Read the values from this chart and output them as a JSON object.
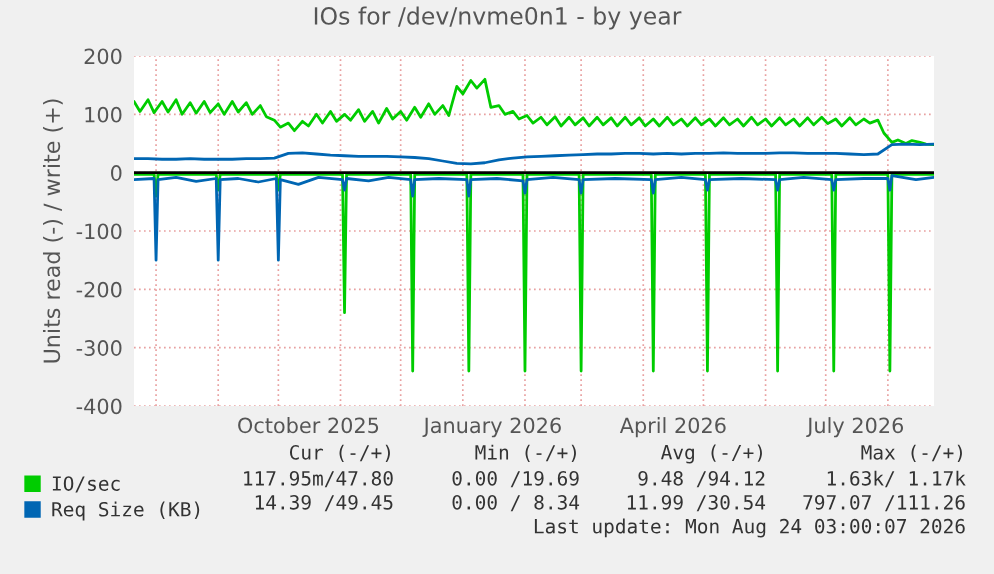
{
  "chart_data": {
    "type": "line",
    "title": "IOs for /dev/nvme0n1 - by year",
    "ylabel": "Units read (-) / write (+)",
    "xlim": [
      "2025-07-21",
      "2026-08-24"
    ],
    "xticks": [
      {
        "value": "2025-08-01",
        "label": null
      },
      {
        "value": "2025-09-01",
        "label": null
      },
      {
        "value": "2025-10-01",
        "label": null
      },
      {
        "value": "2025-10-16",
        "label": "October 2025"
      },
      {
        "value": "2025-11-01",
        "label": null
      },
      {
        "value": "2025-12-01",
        "label": null
      },
      {
        "value": "2026-01-01",
        "label": null
      },
      {
        "value": "2026-01-16",
        "label": "January 2026"
      },
      {
        "value": "2026-02-01",
        "label": null
      },
      {
        "value": "2026-03-01",
        "label": null
      },
      {
        "value": "2026-04-01",
        "label": null
      },
      {
        "value": "2026-04-16",
        "label": "April 2026"
      },
      {
        "value": "2026-05-01",
        "label": null
      },
      {
        "value": "2026-06-01",
        "label": null
      },
      {
        "value": "2026-07-01",
        "label": null
      },
      {
        "value": "2026-07-16",
        "label": "July 2026"
      },
      {
        "value": "2026-08-01",
        "label": null
      }
    ],
    "ylim": [
      -400,
      200
    ],
    "yticks": [
      200,
      100,
      0,
      -100,
      -200,
      -300,
      -400
    ],
    "grid": true,
    "legend": "bottom left",
    "ref_lines": [
      {
        "axis": "y",
        "value": 0,
        "color": "#000000"
      }
    ],
    "series": [
      {
        "name": "IO/sec",
        "color": "#00cc00",
        "x": [
          "2025-07-21",
          "2025-07-24",
          "2025-07-28",
          "2025-07-31",
          "2025-08-04",
          "2025-08-07",
          "2025-08-11",
          "2025-08-14",
          "2025-08-18",
          "2025-08-21",
          "2025-08-25",
          "2025-08-28",
          "2025-09-01",
          "2025-09-04",
          "2025-09-08",
          "2025-09-11",
          "2025-09-15",
          "2025-09-18",
          "2025-09-22",
          "2025-09-25",
          "2025-09-29",
          "2025-10-02",
          "2025-10-06",
          "2025-10-09",
          "2025-10-13",
          "2025-10-16",
          "2025-10-20",
          "2025-10-23",
          "2025-10-27",
          "2025-10-30",
          "2025-11-03",
          "2025-11-06",
          "2025-11-10",
          "2025-11-13",
          "2025-11-17",
          "2025-11-20",
          "2025-11-24",
          "2025-11-27",
          "2025-12-01",
          "2025-12-04",
          "2025-12-08",
          "2025-12-11",
          "2025-12-15",
          "2025-12-18",
          "2025-12-22",
          "2025-12-25",
          "2025-12-29",
          "2026-01-01",
          "2026-01-05",
          "2026-01-08",
          "2026-01-12",
          "2026-01-15",
          "2026-01-19",
          "2026-01-22",
          "2026-01-26",
          "2026-01-29",
          "2026-02-02",
          "2026-02-05",
          "2026-02-09",
          "2026-02-12",
          "2026-02-16",
          "2026-02-19",
          "2026-02-23",
          "2026-02-26",
          "2026-03-02",
          "2026-03-05",
          "2026-03-09",
          "2026-03-12",
          "2026-03-16",
          "2026-03-19",
          "2026-03-23",
          "2026-03-26",
          "2026-03-30",
          "2026-04-02",
          "2026-04-06",
          "2026-04-09",
          "2026-04-13",
          "2026-04-16",
          "2026-04-20",
          "2026-04-23",
          "2026-04-27",
          "2026-04-30",
          "2026-05-04",
          "2026-05-07",
          "2026-05-11",
          "2026-05-14",
          "2026-05-18",
          "2026-05-21",
          "2026-05-25",
          "2026-05-28",
          "2026-06-01",
          "2026-06-04",
          "2026-06-08",
          "2026-06-11",
          "2026-06-15",
          "2026-06-18",
          "2026-06-22",
          "2026-06-25",
          "2026-06-29",
          "2026-07-02",
          "2026-07-06",
          "2026-07-09",
          "2026-07-13",
          "2026-07-16",
          "2026-07-20",
          "2026-07-23",
          "2026-07-27",
          "2026-07-30",
          "2026-08-03",
          "2026-08-06",
          "2026-08-10",
          "2026-08-13",
          "2026-08-17",
          "2026-08-20",
          "2026-08-24"
        ],
        "values": [
          122,
          105,
          125,
          103,
          122,
          104,
          125,
          100,
          120,
          102,
          122,
          103,
          118,
          100,
          122,
          104,
          120,
          100,
          115,
          96,
          90,
          78,
          85,
          72,
          88,
          80,
          100,
          85,
          105,
          88,
          100,
          90,
          108,
          88,
          105,
          85,
          110,
          92,
          105,
          90,
          112,
          95,
          118,
          100,
          115,
          98,
          148,
          135,
          158,
          145,
          160,
          112,
          115,
          100,
          105,
          92,
          98,
          85,
          95,
          82,
          96,
          80,
          95,
          82,
          94,
          80,
          95,
          82,
          94,
          80,
          95,
          82,
          94,
          80,
          92,
          80,
          95,
          82,
          92,
          80,
          94,
          82,
          92,
          80,
          94,
          82,
          92,
          80,
          95,
          82,
          92,
          80,
          94,
          82,
          92,
          80,
          94,
          82,
          95,
          84,
          92,
          80,
          94,
          82,
          92,
          85,
          90,
          68,
          52,
          56,
          50,
          55,
          52,
          49,
          48
        ]
      },
      {
        "color": "#00cc00",
        "x": [
          "2025-07-21",
          "2025-07-31",
          "2025-08-01",
          "2025-08-02",
          "2025-08-31",
          "2025-09-01",
          "2025-09-02",
          "2025-09-30",
          "2025-10-01",
          "2025-10-02",
          "2025-11-02",
          "2025-11-03",
          "2025-11-04",
          "2025-12-06",
          "2025-12-07",
          "2025-12-08",
          "2026-01-03",
          "2026-01-04",
          "2026-01-05",
          "2026-01-31",
          "2026-02-01",
          "2026-02-02",
          "2026-02-28",
          "2026-03-01",
          "2026-03-02",
          "2026-04-05",
          "2026-04-06",
          "2026-04-07",
          "2026-05-02",
          "2026-05-03",
          "2026-05-04",
          "2026-06-06",
          "2026-06-07",
          "2026-06-08",
          "2026-07-04",
          "2026-07-05",
          "2026-07-06",
          "2026-08-01",
          "2026-08-02",
          "2026-08-03",
          "2026-08-24"
        ],
        "values": [
          -3,
          -3,
          -40,
          -3,
          -3,
          -30,
          -3,
          -3,
          -30,
          -3,
          -3,
          -240,
          -3,
          -3,
          -340,
          -3,
          -3,
          -340,
          -3,
          -3,
          -340,
          -3,
          -3,
          -340,
          -3,
          -3,
          -340,
          -3,
          -3,
          -340,
          -3,
          -3,
          -340,
          -3,
          -3,
          -340,
          -3,
          -3,
          -340,
          -3,
          -3
        ]
      },
      {
        "name": "Req Size (KB)",
        "color": "#0066b3",
        "x": [
          "2025-07-21",
          "2025-07-28",
          "2025-08-04",
          "2025-08-11",
          "2025-08-18",
          "2025-08-25",
          "2025-09-01",
          "2025-09-08",
          "2025-09-15",
          "2025-09-22",
          "2025-09-29",
          "2025-10-06",
          "2025-10-13",
          "2025-10-20",
          "2025-10-27",
          "2025-11-03",
          "2025-11-10",
          "2025-11-17",
          "2025-11-24",
          "2025-12-01",
          "2025-12-08",
          "2025-12-15",
          "2025-12-22",
          "2025-12-29",
          "2026-01-05",
          "2026-01-12",
          "2026-01-19",
          "2026-01-26",
          "2026-02-02",
          "2026-02-09",
          "2026-02-16",
          "2026-02-23",
          "2026-03-02",
          "2026-03-09",
          "2026-03-16",
          "2026-03-23",
          "2026-03-30",
          "2026-04-06",
          "2026-04-13",
          "2026-04-20",
          "2026-04-27",
          "2026-05-04",
          "2026-05-11",
          "2026-05-18",
          "2026-05-25",
          "2026-06-01",
          "2026-06-08",
          "2026-06-15",
          "2026-06-22",
          "2026-06-29",
          "2026-07-06",
          "2026-07-13",
          "2026-07-20",
          "2026-07-27",
          "2026-08-03",
          "2026-08-10",
          "2026-08-17",
          "2026-08-24"
        ],
        "values": [
          24,
          24,
          23,
          23,
          24,
          23,
          23,
          23,
          24,
          24,
          25,
          33,
          34,
          32,
          30,
          29,
          28,
          28,
          28,
          27,
          26,
          24,
          20,
          16,
          15,
          17,
          22,
          25,
          27,
          28,
          29,
          30,
          31,
          32,
          32,
          33,
          33,
          32,
          33,
          32,
          33,
          33,
          34,
          33,
          33,
          33,
          34,
          34,
          33,
          33,
          33,
          32,
          31,
          32,
          48,
          49,
          48,
          49
        ]
      },
      {
        "color": "#0066b3",
        "x": [
          "2025-07-21",
          "2025-07-31",
          "2025-08-01",
          "2025-08-02",
          "2025-08-11",
          "2025-08-21",
          "2025-08-31",
          "2025-09-01",
          "2025-09-02",
          "2025-09-11",
          "2025-09-21",
          "2025-09-30",
          "2025-10-01",
          "2025-10-02",
          "2025-10-11",
          "2025-10-21",
          "2025-11-02",
          "2025-11-03",
          "2025-11-04",
          "2025-11-15",
          "2025-11-25",
          "2025-12-06",
          "2025-12-07",
          "2025-12-08",
          "2025-12-20",
          "2026-01-03",
          "2026-01-04",
          "2026-01-05",
          "2026-01-18",
          "2026-01-31",
          "2026-02-01",
          "2026-02-02",
          "2026-02-15",
          "2026-02-28",
          "2026-03-01",
          "2026-03-02",
          "2026-03-18",
          "2026-04-05",
          "2026-04-06",
          "2026-04-07",
          "2026-04-20",
          "2026-05-02",
          "2026-05-03",
          "2026-05-04",
          "2026-05-20",
          "2026-06-06",
          "2026-06-07",
          "2026-06-08",
          "2026-06-20",
          "2026-07-04",
          "2026-07-05",
          "2026-07-06",
          "2026-07-20",
          "2026-08-01",
          "2026-08-02",
          "2026-08-03",
          "2026-08-15",
          "2026-08-24"
        ],
        "values": [
          -12,
          -10,
          -150,
          -12,
          -8,
          -15,
          -10,
          -150,
          -12,
          -10,
          -16,
          -10,
          -150,
          -12,
          -20,
          -8,
          -12,
          -30,
          -10,
          -14,
          -8,
          -12,
          -40,
          -12,
          -10,
          -12,
          -40,
          -12,
          -10,
          -14,
          -35,
          -12,
          -8,
          -12,
          -35,
          -12,
          -10,
          -12,
          -35,
          -12,
          -8,
          -12,
          -30,
          -12,
          -10,
          -12,
          -30,
          -12,
          -8,
          -12,
          -30,
          -12,
          -10,
          -10,
          -30,
          -5,
          -12,
          -8
        ]
      }
    ],
    "annotations": [
      "Cur (-/+)",
      "Min (-/+)",
      "Avg (-/+)",
      "Max (-/+)",
      "117.95m/47.80",
      "0.00 /19.69",
      "9.48 /94.12",
      "1.63k/ 1.17k",
      "14.39 /49.45",
      "0.00 / 8.34",
      "11.99 /30.54",
      "797.07 /111.26",
      "Last update: Mon Aug 24 03:00:07 2026"
    ]
  }
}
